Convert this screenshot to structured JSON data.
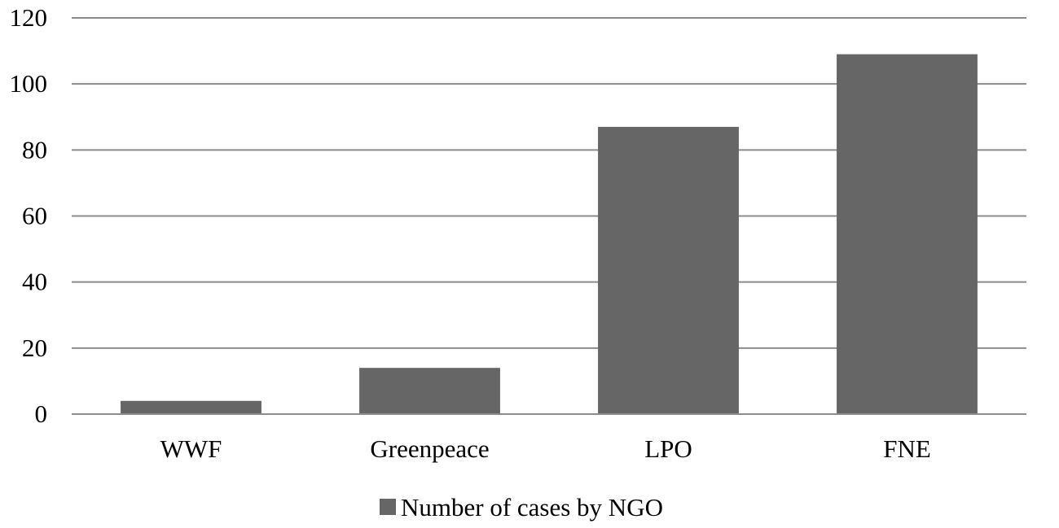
{
  "chart_data": {
    "type": "bar",
    "categories": [
      "WWF",
      "Greenpeace",
      "LPO",
      "FNE"
    ],
    "series": [
      {
        "name": "Number of cases by NGO",
        "values": [
          4,
          14,
          87,
          109
        ],
        "color": "#666666"
      }
    ],
    "title": "",
    "xlabel": "",
    "ylabel": "",
    "ylim": [
      0,
      120
    ],
    "yticks": [
      0,
      20,
      40,
      60,
      80,
      100,
      120
    ],
    "grid": "horizontal",
    "legend": "bottom-center"
  }
}
